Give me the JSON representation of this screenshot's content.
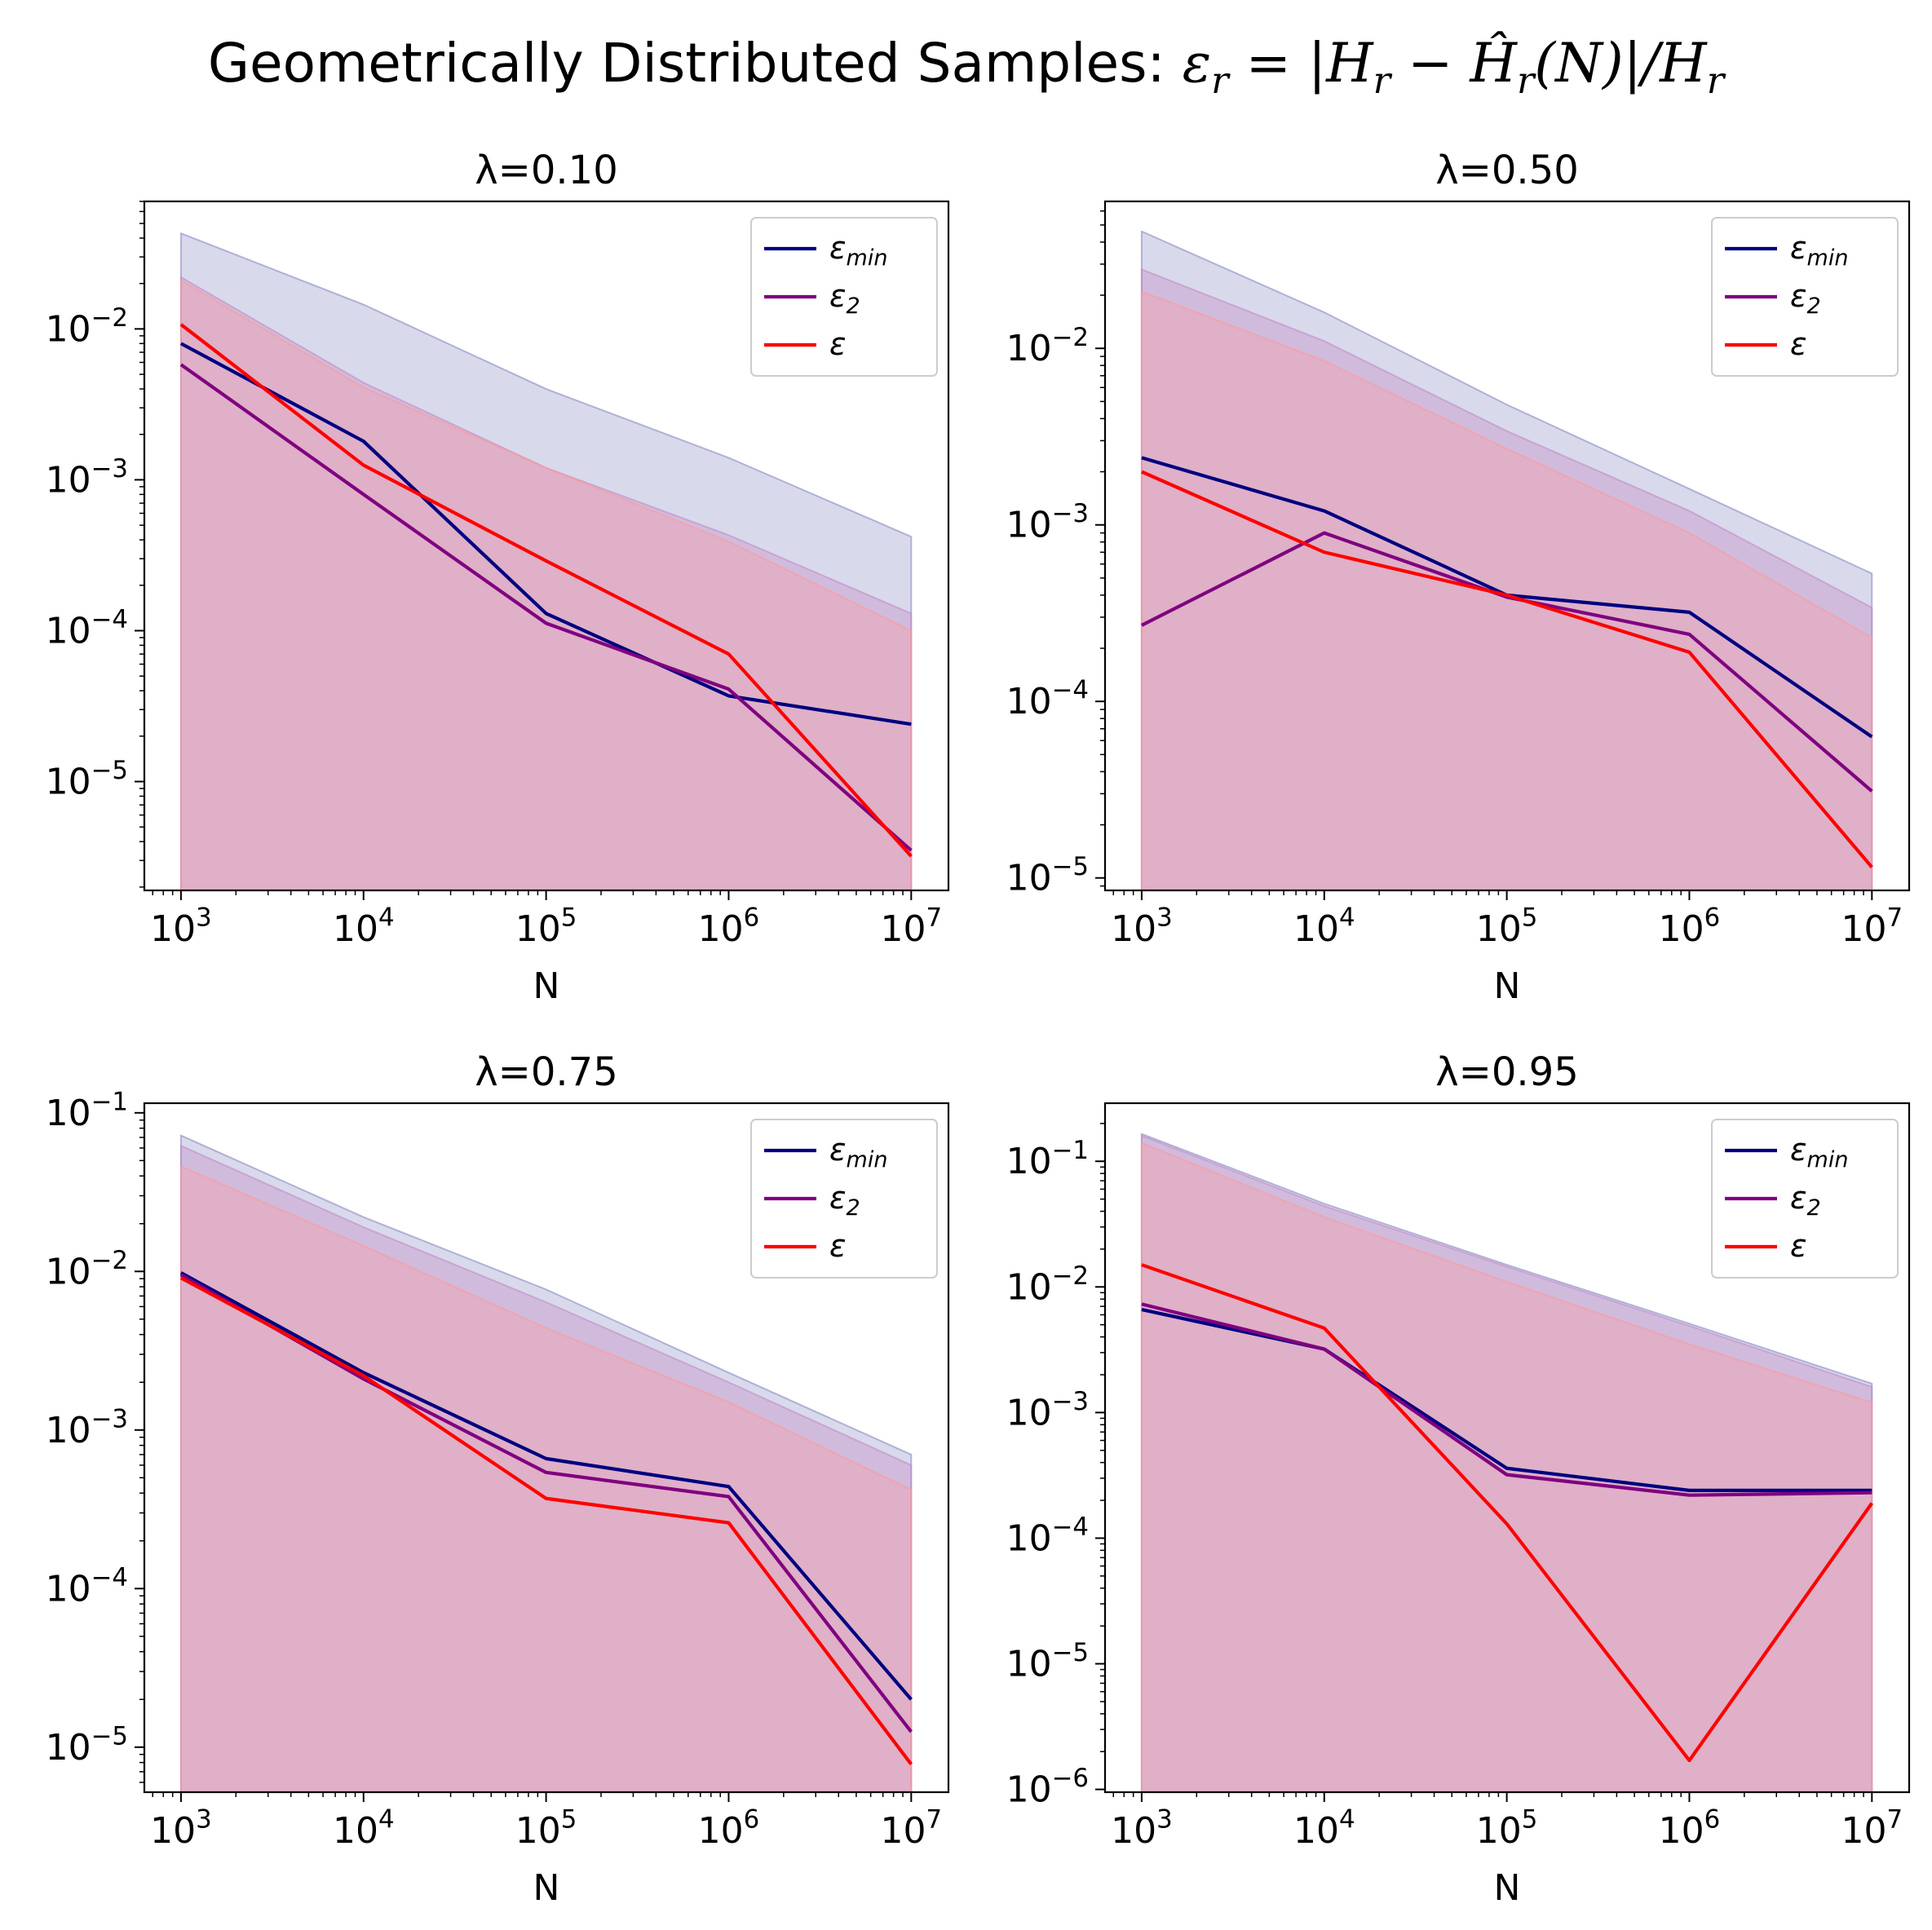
{
  "figure": {
    "title_prefix": "Geometrically Distributed Samples: ",
    "title_math": "εr = |Hr − Ĥr(N)|/Hr"
  },
  "colors": {
    "eps_min": "#000080",
    "eps2": "#800080",
    "eps": "#ff0000",
    "band_min": "#8888c4",
    "band2": "#c28cc6",
    "band": "#ff9999",
    "axis": "#000000"
  },
  "chart_data": [
    {
      "type": "line",
      "title": "λ=0.10",
      "xlabel": "N",
      "ylabel": "",
      "xscale": "log",
      "yscale": "log",
      "x": [
        1000,
        10000,
        100000,
        1000000,
        10000000
      ],
      "xlim": [
        630,
        16000000
      ],
      "ylim": [
        1.9e-06,
        0.07
      ],
      "xticks": [
        1000,
        10000,
        100000,
        1000000,
        10000000
      ],
      "xtick_labels": [
        "10^3",
        "10^4",
        "10^5",
        "10^6",
        "10^7"
      ],
      "yticks": [
        1e-05,
        0.0001,
        0.001,
        0.01
      ],
      "ytick_labels": [
        "10^-5",
        "10^-4",
        "10^-3",
        "10^-2"
      ],
      "legend_position": "top-right",
      "series": [
        {
          "name": "ε_min",
          "values": [
            0.008,
            0.0018,
            0.00013,
            3.7e-05,
            2.4e-05
          ],
          "band_upper": [
            0.043,
            0.0145,
            0.004,
            0.0014,
            0.00042
          ]
        },
        {
          "name": "ε_2",
          "values": [
            0.0058,
            0.0008,
            0.000112,
            4.1e-05,
            3.5e-06
          ],
          "band_upper": [
            0.022,
            0.0044,
            0.0012,
            0.00043,
            0.00013
          ]
        },
        {
          "name": "ε",
          "values": [
            0.0107,
            0.00125,
            0.00029,
            7e-05,
            3.2e-06
          ],
          "band_upper": [
            0.021,
            0.0041,
            0.0012,
            0.00039,
            0.0001
          ]
        }
      ]
    },
    {
      "type": "line",
      "title": "λ=0.50",
      "xlabel": "N",
      "ylabel": "",
      "xscale": "log",
      "yscale": "log",
      "x": [
        1000,
        10000,
        100000,
        1000000,
        10000000
      ],
      "xlim": [
        630,
        16000000
      ],
      "ylim": [
        8.5e-06,
        0.068
      ],
      "xticks": [
        1000,
        10000,
        100000,
        1000000,
        10000000
      ],
      "xtick_labels": [
        "10^3",
        "10^4",
        "10^5",
        "10^6",
        "10^7"
      ],
      "yticks": [
        1e-05,
        0.0001,
        0.001,
        0.01
      ],
      "ytick_labels": [
        "10^-5",
        "10^-4",
        "10^-3",
        "10^-2"
      ],
      "legend_position": "top-right",
      "series": [
        {
          "name": "ε_min",
          "values": [
            0.0024,
            0.0012,
            0.0004,
            0.00032,
            6.3e-05
          ],
          "band_upper": [
            0.046,
            0.016,
            0.0048,
            0.0016,
            0.00053
          ]
        },
        {
          "name": "ε_2",
          "values": [
            0.00027,
            0.0009,
            0.00039,
            0.00024,
            3.1e-05
          ],
          "band_upper": [
            0.028,
            0.011,
            0.0034,
            0.0012,
            0.00034
          ]
        },
        {
          "name": "ε",
          "values": [
            0.002,
            0.0007,
            0.0004,
            0.00019,
            1.15e-05
          ],
          "band_upper": [
            0.021,
            0.0085,
            0.0027,
            0.0009,
            0.00023
          ]
        }
      ]
    },
    {
      "type": "line",
      "title": "λ=0.75",
      "xlabel": "N",
      "ylabel": "",
      "xscale": "log",
      "yscale": "log",
      "x": [
        1000,
        10000,
        100000,
        1000000,
        10000000
      ],
      "xlim": [
        630,
        16000000
      ],
      "ylim": [
        5.2e-06,
        0.115
      ],
      "xticks": [
        1000,
        10000,
        100000,
        1000000,
        10000000
      ],
      "xtick_labels": [
        "10^3",
        "10^4",
        "10^5",
        "10^6",
        "10^7"
      ],
      "yticks": [
        1e-05,
        0.0001,
        0.001,
        0.01,
        0.1
      ],
      "ytick_labels": [
        "10^-5",
        "10^-4",
        "10^-3",
        "10^-2",
        "10^-1"
      ],
      "legend_position": "top-right",
      "series": [
        {
          "name": "ε_min",
          "values": [
            0.0098,
            0.0023,
            0.00066,
            0.00044,
            2e-05
          ],
          "band_upper": [
            0.072,
            0.022,
            0.0077,
            0.0023,
            0.0007
          ]
        },
        {
          "name": "ε_2",
          "values": [
            0.0095,
            0.0021,
            0.00054,
            0.00038,
            1.25e-05
          ],
          "band_upper": [
            0.062,
            0.019,
            0.0064,
            0.002,
            0.0006
          ]
        },
        {
          "name": "ε",
          "values": [
            0.0091,
            0.0022,
            0.00037,
            0.00026,
            7.8e-06
          ],
          "band_upper": [
            0.046,
            0.0145,
            0.0044,
            0.0015,
            0.00042
          ]
        }
      ]
    },
    {
      "type": "line",
      "title": "λ=0.95",
      "xlabel": "N",
      "ylabel": "",
      "xscale": "log",
      "yscale": "log",
      "x": [
        1000,
        10000,
        100000,
        1000000,
        10000000
      ],
      "xlim": [
        630,
        16000000
      ],
      "ylim": [
        9.5e-07,
        0.29
      ],
      "xticks": [
        1000,
        10000,
        100000,
        1000000,
        10000000
      ],
      "xtick_labels": [
        "10^3",
        "10^4",
        "10^5",
        "10^6",
        "10^7"
      ],
      "yticks": [
        1e-06,
        1e-05,
        0.0001,
        0.001,
        0.01,
        0.1
      ],
      "ytick_labels": [
        "10^-6",
        "10^-5",
        "10^-4",
        "10^-3",
        "10^-2",
        "10^-1"
      ],
      "legend_position": "top-right",
      "series": [
        {
          "name": "ε_min",
          "values": [
            0.0066,
            0.0032,
            0.00036,
            0.00024,
            0.00024
          ],
          "band_upper": [
            0.165,
            0.046,
            0.015,
            0.0051,
            0.0017
          ]
        },
        {
          "name": "ε_2",
          "values": [
            0.0073,
            0.0032,
            0.00032,
            0.00022,
            0.00023
          ],
          "band_upper": [
            0.16,
            0.044,
            0.0145,
            0.0049,
            0.0016
          ]
        },
        {
          "name": "ε",
          "values": [
            0.015,
            0.0047,
            0.00013,
            1.7e-06,
            0.00019
          ],
          "band_upper": [
            0.14,
            0.036,
            0.011,
            0.0035,
            0.0012
          ]
        }
      ]
    }
  ]
}
